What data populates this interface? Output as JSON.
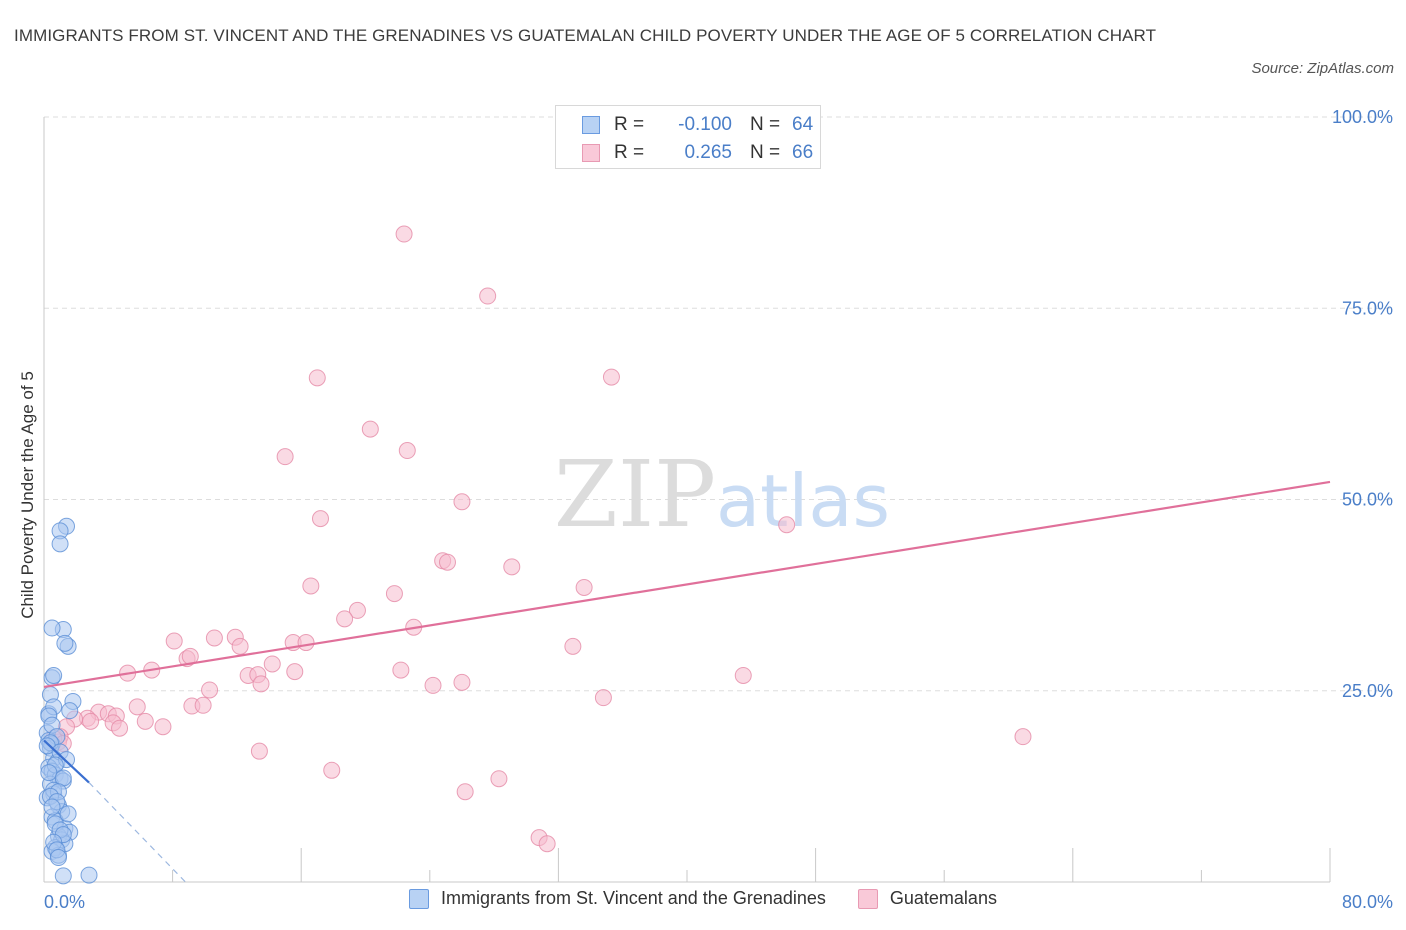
{
  "title": "IMMIGRANTS FROM ST. VINCENT AND THE GRENADINES VS GUATEMALAN CHILD POVERTY UNDER THE AGE OF 5 CORRELATION CHART",
  "source": "Source: ZipAtlas.com",
  "legend_top": {
    "rows": [
      {
        "r_label": "R =",
        "r_value": "-0.100",
        "n_label": "N =",
        "n_value": "64"
      },
      {
        "r_label": "R =",
        "r_value": "0.265",
        "n_label": "N =",
        "n_value": "66"
      }
    ]
  },
  "legend_bottom": [
    {
      "label": "Immigrants from St. Vincent and the Grenadines"
    },
    {
      "label": "Guatemalans"
    }
  ],
  "watermark": {
    "zip": "ZIP",
    "atlas": "atlas"
  },
  "colors": {
    "blue_fill": "#a9c7f0",
    "blue_stroke": "#5b8fd6",
    "blue_line": "#3a6fd0",
    "pink_fill": "#f6bccd",
    "pink_stroke": "#e58aa6",
    "pink_line": "#e0709a",
    "tick_label": "#4a7ec8",
    "grid": "#dddddd"
  },
  "chart_data": {
    "type": "scatter",
    "title": "IMMIGRANTS FROM ST. VINCENT AND THE GRENADINES VS GUATEMALAN CHILD POVERTY UNDER THE AGE OF 5 CORRELATION CHART",
    "xlabel": "",
    "ylabel": "Child Poverty Under the Age of 5",
    "xlim": [
      0,
      80
    ],
    "ylim": [
      0,
      100
    ],
    "x_tick_labels": [
      "0.0%",
      "80.0%"
    ],
    "y_ticks": [
      25,
      50,
      75,
      100
    ],
    "y_tick_labels": [
      "25.0%",
      "50.0%",
      "75.0%",
      "100.0%"
    ],
    "grid": true,
    "legend_position": "bottom",
    "series": [
      {
        "name": "Immigrants from St. Vincent and the Grenadines",
        "color": "#a9c7f0",
        "points": [
          [
            0.3,
            22.0
          ],
          [
            0.5,
            26.7
          ],
          [
            0.4,
            24.5
          ],
          [
            0.6,
            27.0
          ],
          [
            0.2,
            19.5
          ],
          [
            0.3,
            18.5
          ],
          [
            0.5,
            18.0
          ],
          [
            0.4,
            17.5
          ],
          [
            0.6,
            16.2
          ],
          [
            0.8,
            15.6
          ],
          [
            0.3,
            15.0
          ],
          [
            0.5,
            14.5
          ],
          [
            0.7,
            14.0
          ],
          [
            1.0,
            13.5
          ],
          [
            1.2,
            13.2
          ],
          [
            0.4,
            12.8
          ],
          [
            0.6,
            11.5
          ],
          [
            0.2,
            11.0
          ],
          [
            0.9,
            10.0
          ],
          [
            1.1,
            9.2
          ],
          [
            0.5,
            8.5
          ],
          [
            0.7,
            8.0
          ],
          [
            1.3,
            7.0
          ],
          [
            1.6,
            6.5
          ],
          [
            0.9,
            6.0
          ],
          [
            1.1,
            5.5
          ],
          [
            1.3,
            5.0
          ],
          [
            0.7,
            4.5
          ],
          [
            0.5,
            4.0
          ],
          [
            0.9,
            3.5
          ],
          [
            1.2,
            0.8
          ],
          [
            2.8,
            0.9
          ],
          [
            1.4,
            46.5
          ],
          [
            1.0,
            45.9
          ],
          [
            1.0,
            44.2
          ],
          [
            1.2,
            33.0
          ],
          [
            0.5,
            33.2
          ],
          [
            1.5,
            30.8
          ],
          [
            1.3,
            31.2
          ],
          [
            1.8,
            23.6
          ],
          [
            1.6,
            22.4
          ],
          [
            0.6,
            22.9
          ],
          [
            0.3,
            21.7
          ],
          [
            0.5,
            20.5
          ],
          [
            0.8,
            19.0
          ],
          [
            0.4,
            18.2
          ],
          [
            0.2,
            17.8
          ],
          [
            1.0,
            17.0
          ],
          [
            1.4,
            16.0
          ],
          [
            0.7,
            15.3
          ],
          [
            0.3,
            14.3
          ],
          [
            1.2,
            13.6
          ],
          [
            0.6,
            12.0
          ],
          [
            0.9,
            11.8
          ],
          [
            0.4,
            11.2
          ],
          [
            0.8,
            10.5
          ],
          [
            0.5,
            9.8
          ],
          [
            1.5,
            8.9
          ],
          [
            0.7,
            7.6
          ],
          [
            1.0,
            6.8
          ],
          [
            1.2,
            6.2
          ],
          [
            0.6,
            5.2
          ],
          [
            0.8,
            4.2
          ],
          [
            0.9,
            3.2
          ]
        ],
        "trend": {
          "x": [
            0.0,
            2.8
          ],
          "y": [
            18.5,
            13.0
          ]
        },
        "trend_dashed": {
          "x": [
            2.8,
            8.8
          ],
          "y": [
            13.0,
            0.0
          ]
        }
      },
      {
        "name": "Guatemalans",
        "color": "#f6bccd",
        "points": [
          [
            22.4,
            84.7
          ],
          [
            27.6,
            76.6
          ],
          [
            17.0,
            65.9
          ],
          [
            35.3,
            66.0
          ],
          [
            20.3,
            59.2
          ],
          [
            22.6,
            56.4
          ],
          [
            15.0,
            55.6
          ],
          [
            26.0,
            49.7
          ],
          [
            17.2,
            47.5
          ],
          [
            46.2,
            46.7
          ],
          [
            24.8,
            42.0
          ],
          [
            25.1,
            41.8
          ],
          [
            29.1,
            41.2
          ],
          [
            16.6,
            38.7
          ],
          [
            33.6,
            38.5
          ],
          [
            21.8,
            37.7
          ],
          [
            19.5,
            35.5
          ],
          [
            18.7,
            34.4
          ],
          [
            23.0,
            33.3
          ],
          [
            8.1,
            31.5
          ],
          [
            10.6,
            31.9
          ],
          [
            11.9,
            32.0
          ],
          [
            15.5,
            31.3
          ],
          [
            16.3,
            31.3
          ],
          [
            12.2,
            30.8
          ],
          [
            32.9,
            30.8
          ],
          [
            8.9,
            29.2
          ],
          [
            9.1,
            29.5
          ],
          [
            14.2,
            28.5
          ],
          [
            22.2,
            27.7
          ],
          [
            15.6,
            27.5
          ],
          [
            5.2,
            27.3
          ],
          [
            6.7,
            27.7
          ],
          [
            12.7,
            27.0
          ],
          [
            13.3,
            27.1
          ],
          [
            26.0,
            26.1
          ],
          [
            24.2,
            25.7
          ],
          [
            13.5,
            25.9
          ],
          [
            10.3,
            25.1
          ],
          [
            43.5,
            27.0
          ],
          [
            34.8,
            24.1
          ],
          [
            5.8,
            22.9
          ],
          [
            9.2,
            23.0
          ],
          [
            9.9,
            23.1
          ],
          [
            3.4,
            22.2
          ],
          [
            4.0,
            22.0
          ],
          [
            4.5,
            21.7
          ],
          [
            2.7,
            21.4
          ],
          [
            1.9,
            21.3
          ],
          [
            2.9,
            21.0
          ],
          [
            4.3,
            20.8
          ],
          [
            6.3,
            21.0
          ],
          [
            4.7,
            20.1
          ],
          [
            7.4,
            20.3
          ],
          [
            1.4,
            20.3
          ],
          [
            1.0,
            19.0
          ],
          [
            0.9,
            18.3
          ],
          [
            60.9,
            19.0
          ],
          [
            13.4,
            17.1
          ],
          [
            17.9,
            14.6
          ],
          [
            28.3,
            13.5
          ],
          [
            26.2,
            11.8
          ],
          [
            30.8,
            5.8
          ],
          [
            31.3,
            5.0
          ],
          [
            0.6,
            18.8
          ],
          [
            1.2,
            18.1
          ]
        ],
        "trend": {
          "x": [
            0.0,
            80.0
          ],
          "y": [
            25.5,
            52.3
          ]
        }
      }
    ]
  }
}
